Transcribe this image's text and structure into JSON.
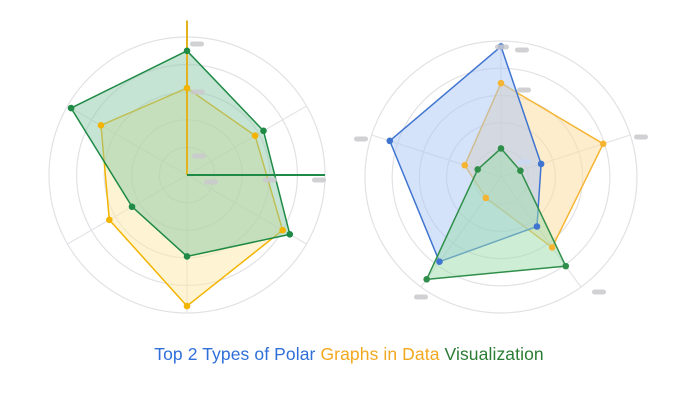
{
  "title": {
    "part1": "Top 2 Types of Polar",
    "part2": "Graphs in Data",
    "part3": "Visualization",
    "colors": {
      "part1": "#2f6fd8",
      "part2": "#f2a81d",
      "part3": "#2b7d34"
    }
  },
  "chart_data": [
    {
      "type": "radar",
      "axes_count": 6,
      "rlim": [
        0,
        100
      ],
      "rings": 5,
      "grid": true,
      "axis_labels_visible": false,
      "series": [
        {
          "color": "#f2b400",
          "fill": "#fde9a8",
          "values": [
            63,
            57,
            80,
            95,
            65,
            72
          ]
        },
        {
          "color": "#1e8a45",
          "fill": "#8cc9a8",
          "values": [
            90,
            64,
            86,
            59,
            46,
            97
          ]
        }
      ],
      "guide_lines": [
        {
          "color": "#e3b21c",
          "angle_deg_from_top": 0,
          "value": 112
        },
        {
          "color": "#1e8a45",
          "angle_deg_from_top": 90,
          "value": 100
        }
      ]
    },
    {
      "type": "radar",
      "axes_count": 5,
      "rlim": [
        0,
        100
      ],
      "rings": 5,
      "grid": true,
      "axis_labels_visible": false,
      "series": [
        {
          "color": "#f5b533",
          "fill": "#fddc9a",
          "values": [
            69,
            79,
            64,
            19,
            28
          ]
        },
        {
          "color": "#3f74d0",
          "fill": "#a9c6f5",
          "values": [
            96,
            31,
            45,
            77,
            86
          ]
        },
        {
          "color": "#2f8f4a",
          "fill": "#9bdcab",
          "values": [
            21,
            15,
            81,
            93,
            18
          ]
        }
      ]
    }
  ]
}
